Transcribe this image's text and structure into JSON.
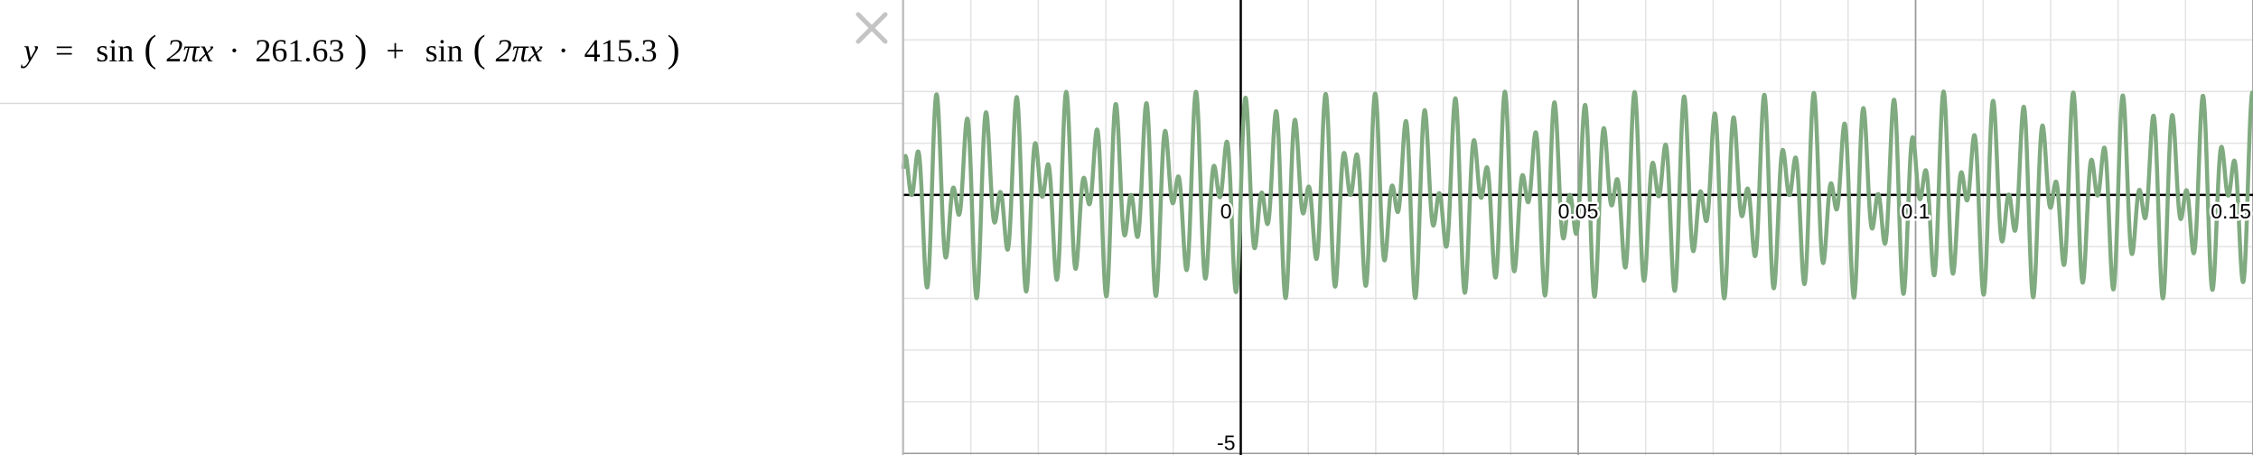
{
  "expression": {
    "lhs": "y",
    "equals": "=",
    "plus": "+",
    "terms": [
      {
        "func": "sin",
        "open": "(",
        "arg": "2πx",
        "dot": "·",
        "freq": 261.63,
        "close": ")"
      },
      {
        "func": "sin",
        "open": "(",
        "arg": "2πx",
        "dot": "·",
        "freq": 415.3,
        "close": ")"
      }
    ]
  },
  "graph": {
    "xlim": [
      -0.05,
      0.15
    ],
    "ylim": [
      -5.03,
      3.77
    ],
    "xticks": [
      0,
      0.05,
      0.1,
      0.15
    ],
    "yticks": [
      -5
    ],
    "grid": true,
    "color": "#80aa80"
  }
}
